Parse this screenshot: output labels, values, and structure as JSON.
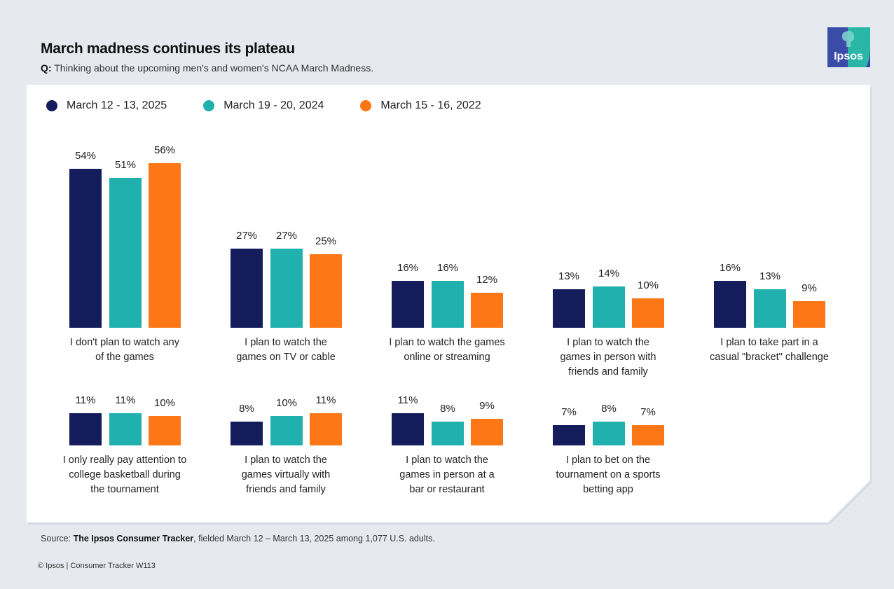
{
  "header": {
    "title": "March madness continues its plateau",
    "question_prefix": "Q:",
    "question": "Thinking about the upcoming men's and women's NCAA March Madness.",
    "logo_text": "Ipsos"
  },
  "colors": {
    "series_2025": "#141c5c",
    "series_2024": "#20b1ae",
    "series_2022": "#fe7716",
    "logo_blue": "#3a4ba8",
    "logo_teal": "#2bb7a8"
  },
  "chart_data": {
    "type": "bar",
    "title": "March madness continues its plateau",
    "subtitle": "Q: Thinking about the upcoming men's and women's NCAA March Madness.",
    "xlabel": "",
    "ylabel": "",
    "ylim": [
      0,
      60
    ],
    "grid": false,
    "legend_position": "top-left",
    "unit": "%",
    "categories": [
      "I don't plan to watch any of the games",
      "I plan to watch the games on TV or cable",
      "I plan to watch the games online or streaming",
      "I plan to watch the games in person with friends and family",
      "I plan to take part in a casual \"bracket\" challenge",
      "I only really pay attention to college basketball during the tournament",
      "I plan to watch the games virtually with friends and family",
      "I plan to watch the games in person at a bar or restaurant",
      "I plan to bet on the tournament on a sports betting app"
    ],
    "category_lines": [
      [
        "I don't plan to watch any",
        "of the games"
      ],
      [
        "I plan to watch the",
        "games on TV or cable"
      ],
      [
        "I plan to watch the games",
        "online or streaming"
      ],
      [
        "I plan to watch the",
        "games in person with",
        "friends and family"
      ],
      [
        "I plan to take part in a",
        "casual \"bracket\" challenge"
      ],
      [
        "I only really pay attention to",
        "college basketball during",
        "the tournament"
      ],
      [
        "I plan to watch the",
        "games virtually with",
        "friends and family"
      ],
      [
        "I plan to watch the",
        "games in person at a",
        "bar or restaurant"
      ],
      [
        "I plan to bet on the",
        "tournament on a sports",
        "betting app"
      ]
    ],
    "series": [
      {
        "name": "March 12 - 13, 2025",
        "color": "#141c5c",
        "values": [
          54,
          27,
          16,
          13,
          16,
          11,
          8,
          11,
          7
        ]
      },
      {
        "name": "March 19 - 20, 2024",
        "color": "#20b1ae",
        "values": [
          51,
          27,
          16,
          14,
          13,
          11,
          10,
          8,
          8
        ]
      },
      {
        "name": "March 15 - 16, 2022",
        "color": "#fe7716",
        "values": [
          56,
          25,
          12,
          10,
          9,
          10,
          11,
          9,
          7
        ]
      }
    ]
  },
  "footer": {
    "source_prefix": "Source: ",
    "source_bold": "The Ipsos Consumer Tracker",
    "source_rest": ", fielded March 12 – March 13, 2025 among 1,077 U.S. adults.",
    "copyright": "© Ipsos | Consumer Tracker W113"
  }
}
